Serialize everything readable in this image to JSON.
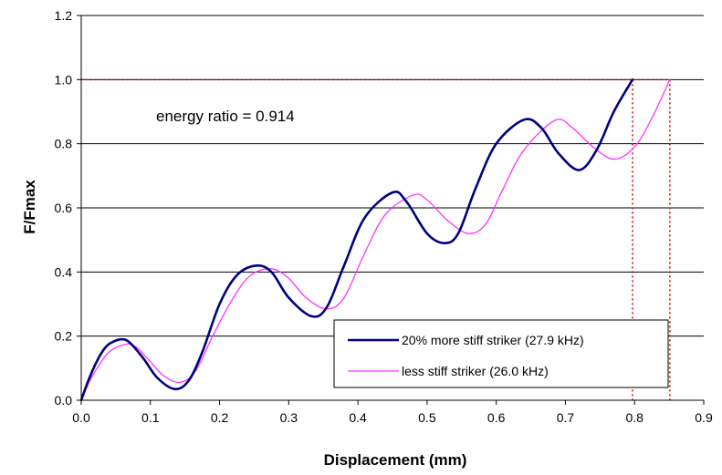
{
  "chart_data": {
    "type": "line",
    "title": "",
    "xlabel": "Displacement (mm)",
    "ylabel": "F/Fmax",
    "xlim": [
      0,
      0.9
    ],
    "ylim": [
      0,
      1.2
    ],
    "x_ticks": [
      "0.0",
      "0.1",
      "0.2",
      "0.3",
      "0.4",
      "0.5",
      "0.6",
      "0.7",
      "0.8",
      "0.9"
    ],
    "y_ticks": [
      "0.0",
      "0.2",
      "0.4",
      "0.6",
      "0.8",
      "1.0",
      "1.2"
    ],
    "grid": "horizontal",
    "legend_position": "bottom-right",
    "annotation": "energy ratio = 0.914",
    "reference_line": {
      "y": 1.0,
      "x_markers": [
        0.797,
        0.851
      ],
      "color": "#cc0000"
    },
    "series": [
      {
        "name": "20% more stiff striker (27.9 kHz)",
        "color": "#000080",
        "x": [
          0.0,
          0.01,
          0.02,
          0.03,
          0.04,
          0.057,
          0.07,
          0.09,
          0.11,
          0.135,
          0.155,
          0.175,
          0.2,
          0.225,
          0.253,
          0.275,
          0.3,
          0.333,
          0.355,
          0.38,
          0.41,
          0.45,
          0.47,
          0.5,
          0.525,
          0.545,
          0.57,
          0.6,
          0.64,
          0.665,
          0.69,
          0.72,
          0.745,
          0.77,
          0.797
        ],
        "y": [
          0.0,
          0.06,
          0.11,
          0.15,
          0.175,
          0.19,
          0.18,
          0.13,
          0.07,
          0.035,
          0.06,
          0.15,
          0.3,
          0.39,
          0.42,
          0.4,
          0.32,
          0.262,
          0.29,
          0.42,
          0.57,
          0.648,
          0.62,
          0.52,
          0.49,
          0.52,
          0.66,
          0.8,
          0.875,
          0.85,
          0.77,
          0.718,
          0.78,
          0.9,
          1.0
        ]
      },
      {
        "name": "less stiff striker (26.0 kHz)",
        "color": "#ff33ff",
        "x": [
          0.0,
          0.01,
          0.02,
          0.04,
          0.065,
          0.08,
          0.1,
          0.12,
          0.143,
          0.165,
          0.19,
          0.22,
          0.245,
          0.275,
          0.3,
          0.325,
          0.355,
          0.38,
          0.41,
          0.44,
          0.48,
          0.5,
          0.53,
          0.56,
          0.585,
          0.61,
          0.64,
          0.685,
          0.71,
          0.74,
          0.77,
          0.8,
          0.825,
          0.851
        ],
        "y": [
          0.0,
          0.05,
          0.09,
          0.15,
          0.175,
          0.165,
          0.12,
          0.075,
          0.056,
          0.09,
          0.2,
          0.32,
          0.39,
          0.41,
          0.38,
          0.32,
          0.285,
          0.32,
          0.46,
          0.58,
          0.64,
          0.625,
          0.56,
          0.52,
          0.55,
          0.66,
          0.78,
          0.873,
          0.85,
          0.79,
          0.752,
          0.79,
          0.88,
          1.0
        ]
      }
    ]
  }
}
